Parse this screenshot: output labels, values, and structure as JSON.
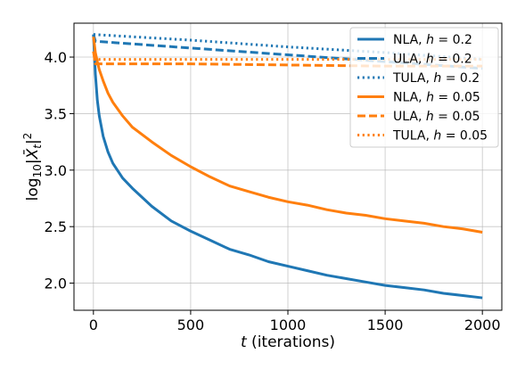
{
  "chart_data": {
    "type": "line",
    "xlabel_var": "t",
    "xlabel_rest": " (iterations)",
    "ylabel_pre": "log",
    "ylabel_sub": "10",
    "ylabel_post": "|X̄",
    "ylabel_sub2": "t",
    "ylabel_end": "|",
    "ylabel_sup": "2",
    "xlim": [
      -100,
      2100
    ],
    "ylim": [
      1.76,
      4.3
    ],
    "xticks": [
      0,
      500,
      1000,
      1500,
      2000
    ],
    "xtick_labels": [
      "0",
      "500",
      "1000",
      "1500",
      "2000"
    ],
    "yticks": [
      2.0,
      2.5,
      3.0,
      3.5,
      4.0
    ],
    "ytick_labels": [
      "2.0",
      "2.5",
      "3.0",
      "3.5",
      "4.0"
    ],
    "grid": true,
    "legend_position": "top-right",
    "colors": {
      "blue": "#1f77b4",
      "orange": "#ff7f0e"
    },
    "series": [
      {
        "name": "NLA, h = 0.2",
        "legend_method": "NLA, ",
        "legend_var": "h",
        "legend_eq": " = 0.2",
        "color": "#1f77b4",
        "dash": "solid",
        "x": [
          0,
          10,
          20,
          30,
          50,
          75,
          100,
          150,
          200,
          300,
          400,
          500,
          600,
          700,
          800,
          900,
          1000,
          1100,
          1200,
          1300,
          1400,
          1500,
          1600,
          1700,
          1800,
          1900,
          2000
        ],
        "y": [
          4.2,
          3.85,
          3.62,
          3.48,
          3.3,
          3.16,
          3.06,
          2.93,
          2.84,
          2.68,
          2.55,
          2.46,
          2.38,
          2.3,
          2.25,
          2.19,
          2.15,
          2.11,
          2.07,
          2.04,
          2.01,
          1.98,
          1.96,
          1.94,
          1.91,
          1.89,
          1.87
        ]
      },
      {
        "name": "ULA, h = 0.2",
        "legend_method": "ULA, ",
        "legend_var": "h",
        "legend_eq": " = 0.2",
        "color": "#1f77b4",
        "dash": "dashed",
        "x": [
          0,
          10,
          500,
          1000,
          1500,
          2000
        ],
        "y": [
          4.2,
          4.14,
          4.08,
          4.02,
          3.96,
          3.9
        ]
      },
      {
        "name": "TULA, h = 0.2",
        "legend_method": "TULA, ",
        "legend_var": "h",
        "legend_eq": " = 0.2",
        "color": "#1f77b4",
        "dash": "dotted",
        "x": [
          0,
          500,
          1000,
          1500,
          2000
        ],
        "y": [
          4.2,
          4.15,
          4.09,
          4.04,
          3.98
        ]
      },
      {
        "name": "NLA, h = 0.05",
        "legend_method": "NLA, ",
        "legend_var": "h",
        "legend_eq": " = 0.05",
        "color": "#ff7f0e",
        "dash": "solid",
        "x": [
          0,
          10,
          20,
          30,
          50,
          75,
          100,
          150,
          200,
          300,
          400,
          500,
          600,
          700,
          800,
          900,
          1000,
          1100,
          1200,
          1300,
          1400,
          1500,
          1600,
          1700,
          1800,
          1900,
          2000
        ],
        "y": [
          4.18,
          4.04,
          3.96,
          3.89,
          3.79,
          3.68,
          3.6,
          3.48,
          3.38,
          3.25,
          3.13,
          3.03,
          2.94,
          2.86,
          2.81,
          2.76,
          2.72,
          2.69,
          2.65,
          2.62,
          2.6,
          2.57,
          2.55,
          2.53,
          2.5,
          2.48,
          2.45
        ]
      },
      {
        "name": "ULA, h = 0.05",
        "legend_method": "ULA, ",
        "legend_var": "h",
        "legend_eq": " = 0.05",
        "color": "#ff7f0e",
        "dash": "dashed",
        "x": [
          0,
          10,
          500,
          1000,
          1500,
          2000
        ],
        "y": [
          4.05,
          3.94,
          3.94,
          3.93,
          3.92,
          3.92
        ]
      },
      {
        "name": "TULA, h = 0.05",
        "legend_method": "TULA, ",
        "legend_var": "h",
        "legend_eq": " = 0.05",
        "color": "#ff7f0e",
        "dash": "dotted",
        "x": [
          0,
          500,
          1000,
          1500,
          2000
        ],
        "y": [
          3.98,
          3.98,
          3.98,
          3.98,
          3.98
        ]
      }
    ]
  }
}
